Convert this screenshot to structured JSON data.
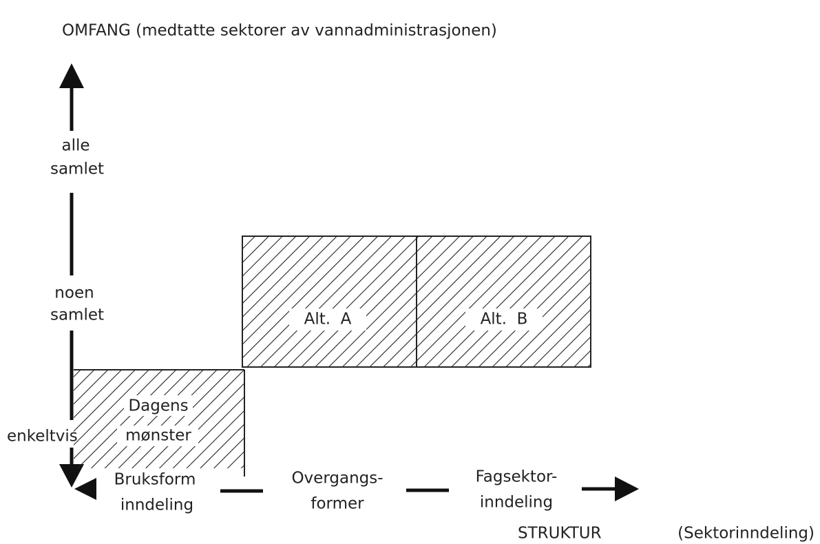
{
  "top_label": "OMFANG (medtatte sektorer av vannadministrasjonen)",
  "levels": [
    {
      "lines": [
        "alle",
        "samlet"
      ]
    },
    {
      "lines": [
        "noen",
        "samlet"
      ]
    },
    {
      "lines": [
        "enkeltvis"
      ]
    }
  ],
  "areas": [
    {
      "lines": [
        "Dagens",
        "mønster"
      ]
    },
    {
      "lines": [
        "Alt.  A"
      ]
    },
    {
      "lines": [
        "Alt.  B"
      ]
    }
  ],
  "stages": [
    {
      "lines": [
        "Bruksform",
        "inndeling"
      ]
    },
    {
      "lines": [
        "Overgangs-",
        "former"
      ]
    },
    {
      "lines": [
        "Fagsektor-",
        "inndeling"
      ]
    }
  ],
  "bottom_label": "STRUKTUR",
  "bottom_sublabel": "(Sektorinndeling)"
}
